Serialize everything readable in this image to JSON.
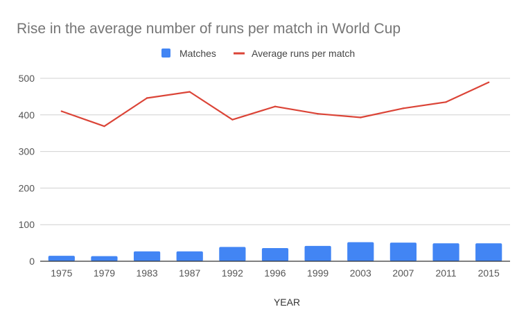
{
  "chart_data": {
    "type": "bar",
    "title": "Rise in the average number of runs per match in World Cup",
    "xlabel": "YEAR",
    "ylabel": "",
    "ylim": [
      0,
      500
    ],
    "yticks": [
      0,
      100,
      200,
      300,
      400,
      500
    ],
    "grid": true,
    "legend_position": "top",
    "categories": [
      "1975",
      "1979",
      "1983",
      "1987",
      "1992",
      "1996",
      "1999",
      "2003",
      "2007",
      "2011",
      "2015"
    ],
    "series": [
      {
        "name": "Matches",
        "kind": "bar",
        "color": "#4285f4",
        "values": [
          15,
          14,
          27,
          27,
          39,
          36,
          42,
          52,
          51,
          49,
          49
        ]
      },
      {
        "name": "Average runs per match",
        "kind": "line",
        "color": "#db4437",
        "values": [
          410,
          369,
          446,
          463,
          387,
          423,
          403,
          393,
          418,
          435,
          489
        ]
      }
    ]
  }
}
